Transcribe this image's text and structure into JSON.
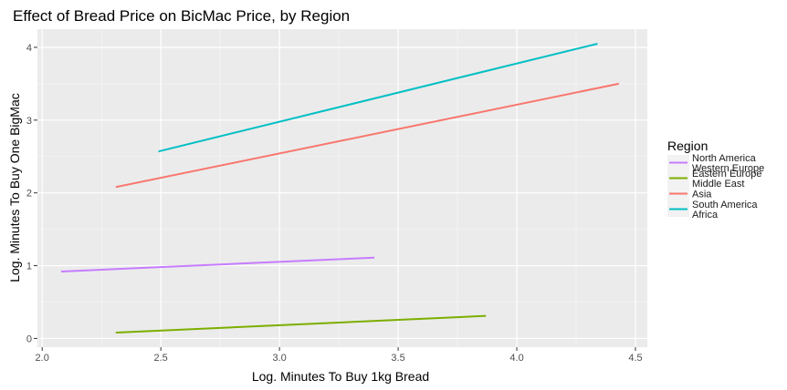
{
  "chart_data": {
    "type": "line",
    "title": "Effect of Bread Price on BicMac Price, by Region",
    "xlabel": "Log. Minutes To Buy 1kg Bread",
    "ylabel": "Log. Minutes To Buy One BigMac",
    "xlim": [
      1.98,
      4.55
    ],
    "ylim": [
      -0.12,
      4.25
    ],
    "x_ticks": [
      2.0,
      2.5,
      3.0,
      3.5,
      4.0,
      4.5
    ],
    "x_tick_labels": [
      "2.0",
      "2.5",
      "3.0",
      "3.5",
      "4.0",
      "4.5"
    ],
    "y_ticks": [
      0,
      1,
      2,
      3,
      4
    ],
    "y_tick_labels": [
      "0",
      "1",
      "2",
      "3",
      "4"
    ],
    "grid": true,
    "legend_title": "Region",
    "legend_position": "right",
    "series": [
      {
        "name": "North America\nWestern Europe",
        "color": "#C77CFF",
        "x": [
          2.08,
          3.4
        ],
        "y": [
          0.92,
          1.11
        ]
      },
      {
        "name": "Eastern Europe\nMiddle East",
        "color": "#7CAE00",
        "x": [
          2.31,
          3.87
        ],
        "y": [
          0.08,
          0.31
        ]
      },
      {
        "name": "Asia",
        "color": "#F8766D",
        "x": [
          2.31,
          4.43
        ],
        "y": [
          2.08,
          3.5
        ]
      },
      {
        "name": "South America\nAfrica",
        "color": "#00BFC4",
        "x": [
          2.49,
          4.34
        ],
        "y": [
          2.57,
          4.05
        ]
      }
    ]
  }
}
